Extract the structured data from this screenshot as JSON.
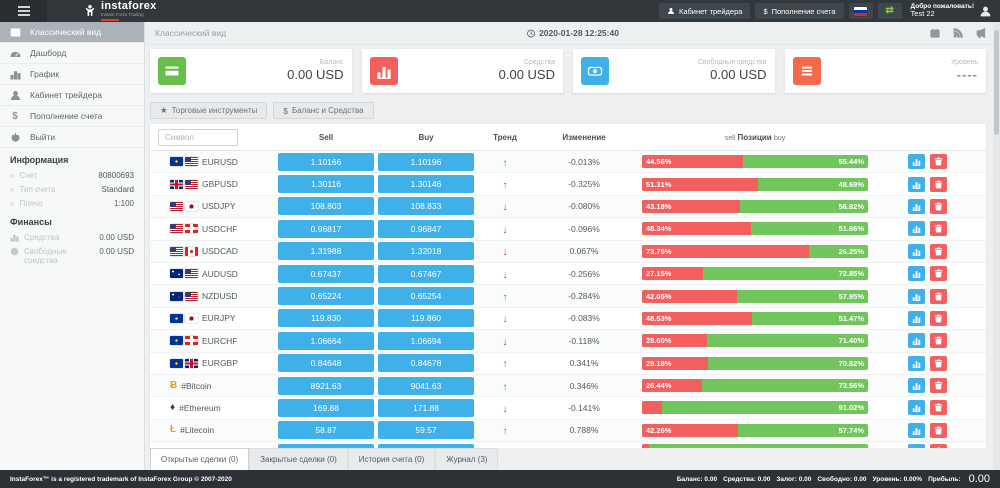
{
  "header": {
    "logo_text": "instaforex",
    "logo_subtitle": "Instant Forex Trading",
    "cabinet_button": "Кабинет трейдера",
    "deposit_button": "Пополнение счета",
    "welcome_text": "Добро пожаловать!",
    "username": "Test 22"
  },
  "icons": {
    "star": "★",
    "dollar": "$",
    "swap": "⇄",
    "trend_up": "↑",
    "trend_down": "↓",
    "chevron": "»"
  },
  "sidebar": {
    "items": [
      {
        "label": "Классический вид",
        "active": true
      },
      {
        "label": "Дашборд",
        "active": false
      },
      {
        "label": "График",
        "active": false
      },
      {
        "label": "Кабинет трейдера",
        "active": false
      },
      {
        "label": "Пополнение счета",
        "active": false
      },
      {
        "label": "Выйти",
        "active": false
      }
    ],
    "info_title": "Информация",
    "info_rows": [
      {
        "label": "Счет",
        "value": "80800693"
      },
      {
        "label": "Тип счета",
        "value": "Standard"
      },
      {
        "label": "Плечо",
        "value": "1:100"
      }
    ],
    "finance_title": "Финансы",
    "finance_rows": [
      {
        "label": "Средства",
        "value": "0.00 USD"
      },
      {
        "label": "Свободные средства",
        "value": "0.00 USD"
      }
    ]
  },
  "topbar": {
    "title": "Классический вид",
    "datetime": "2020-01-28 12:25:40"
  },
  "cards": [
    {
      "label": "Баланс",
      "value": "0.00 USD",
      "color": "#6abf4b"
    },
    {
      "label": "Средства",
      "value": "0.00 USD",
      "color": "#f15f5f"
    },
    {
      "label": "Свободные средства",
      "value": "0.00 USD",
      "color": "#3fb0e8"
    },
    {
      "label": "Уровень",
      "value": "----",
      "color": "#f4694c"
    }
  ],
  "toolbar": {
    "instruments_button": "Торговые инструменты",
    "balance_button": "Баланс и Средства"
  },
  "table": {
    "symbol_placeholder": "Символ",
    "columns": {
      "sell": "Sell",
      "buy": "Buy",
      "trend": "Тренд",
      "change": "Изменение",
      "positions_sell": "sell",
      "positions": "Позиции",
      "positions_buy": "buy"
    },
    "rows": [
      {
        "symbol": "EURUSD",
        "flags": [
          "eu",
          "us"
        ],
        "sell": "1.10166",
        "buy": "1.10196",
        "trend": "up",
        "change": "-0.013%",
        "positions": {
          "sell": "44.56%",
          "buy": "55.44%",
          "sell_width": 44.56
        }
      },
      {
        "symbol": "GBPUSD",
        "flags": [
          "gb",
          "us"
        ],
        "sell": "1.30116",
        "buy": "1.30146",
        "trend": "up",
        "change": "-0.325%",
        "positions": {
          "sell": "51.31%",
          "buy": "48.69%",
          "sell_width": 51.31
        }
      },
      {
        "symbol": "USDJPY",
        "flags": [
          "us",
          "jp"
        ],
        "sell": "108.803",
        "buy": "108.833",
        "trend": "down",
        "change": "-0.080%",
        "positions": {
          "sell": "43.18%",
          "buy": "56.82%",
          "sell_width": 43.18
        }
      },
      {
        "symbol": "USDCHF",
        "flags": [
          "us",
          "ch"
        ],
        "sell": "0.96817",
        "buy": "0.96847",
        "trend": "down",
        "change": "-0.096%",
        "positions": {
          "sell": "48.34%",
          "buy": "51.66%",
          "sell_width": 48.34
        }
      },
      {
        "symbol": "USDCAD",
        "flags": [
          "us",
          "ca"
        ],
        "sell": "1.31988",
        "buy": "1.32018",
        "trend": "down",
        "change": "0.067%",
        "positions": {
          "sell": "73.75%",
          "buy": "26.25%",
          "sell_width": 73.75
        }
      },
      {
        "symbol": "AUDUSD",
        "flags": [
          "au",
          "us"
        ],
        "sell": "0.67437",
        "buy": "0.67467",
        "trend": "down",
        "change": "-0.256%",
        "positions": {
          "sell": "27.15%",
          "buy": "72.85%",
          "sell_width": 27.15
        }
      },
      {
        "symbol": "NZDUSD",
        "flags": [
          "nz",
          "us"
        ],
        "sell": "0.65224",
        "buy": "0.65254",
        "trend": "up",
        "change": "-0.284%",
        "positions": {
          "sell": "42.05%",
          "buy": "57.95%",
          "sell_width": 42.05
        }
      },
      {
        "symbol": "EURJPY",
        "flags": [
          "eu",
          "jp"
        ],
        "sell": "119.830",
        "buy": "119.860",
        "trend": "down",
        "change": "-0.083%",
        "positions": {
          "sell": "48.53%",
          "buy": "51.47%",
          "sell_width": 48.53
        }
      },
      {
        "symbol": "EURCHF",
        "flags": [
          "eu",
          "ch"
        ],
        "sell": "1.06664",
        "buy": "1.06694",
        "trend": "down",
        "change": "-0.118%",
        "positions": {
          "sell": "28.60%",
          "buy": "71.40%",
          "sell_width": 28.6
        }
      },
      {
        "symbol": "EURGBP",
        "flags": [
          "eu",
          "gb"
        ],
        "sell": "0.84648",
        "buy": "0.84678",
        "trend": "up",
        "change": "0.341%",
        "positions": {
          "sell": "29.18%",
          "buy": "70.82%",
          "sell_width": 29.18
        }
      },
      {
        "symbol": "#Bitcoin",
        "crypto": {
          "name": "bitcoin",
          "glyph": "Ƀ",
          "color": "#f7931a"
        },
        "sell": "8921.63",
        "buy": "9041.63",
        "trend": "up",
        "change": "0.346%",
        "positions": {
          "sell": "26.44%",
          "buy": "73.56%",
          "sell_width": 26.44
        }
      },
      {
        "symbol": "#Ethereum",
        "crypto": {
          "name": "ethereum",
          "glyph": "♦",
          "color": "#3e3e3e"
        },
        "sell": "169.88",
        "buy": "171.88",
        "trend": "down",
        "change": "-0.141%",
        "positions": {
          "sell": "",
          "buy": "91.02%",
          "sell_width": 8.98
        }
      },
      {
        "symbol": "#Litecoin",
        "crypto": {
          "name": "litecoin",
          "glyph": "Ł",
          "color": "#e0a81e"
        },
        "sell": "58.87",
        "buy": "59.57",
        "trend": "up",
        "change": "0.788%",
        "positions": {
          "sell": "42.26%",
          "buy": "57.74%",
          "sell_width": 42.26
        }
      },
      {
        "symbol": "",
        "partial": true,
        "sell": "",
        "buy": "",
        "trend": "",
        "change": "",
        "positions": {
          "sell": "",
          "buy": "",
          "sell_width": 3
        }
      }
    ]
  },
  "tabs": [
    {
      "label": "Открытые сделки (0)",
      "active": true
    },
    {
      "label": "Закрытые сделки (0)",
      "active": false
    },
    {
      "label": "История счета (0)",
      "active": false
    },
    {
      "label": "Журнал (3)",
      "active": false
    }
  ],
  "footer": {
    "trademark": "InstaForex™ is a registered trademark of InstaForex Group © 2007-2020",
    "stats": [
      "Баланс: 0.00",
      "Средства: 0.00",
      "Залог: 0.00",
      "Свободно: 0.00",
      "Уровень: 0.00%",
      "Прибыль:"
    ],
    "profit_value": "0.00"
  }
}
